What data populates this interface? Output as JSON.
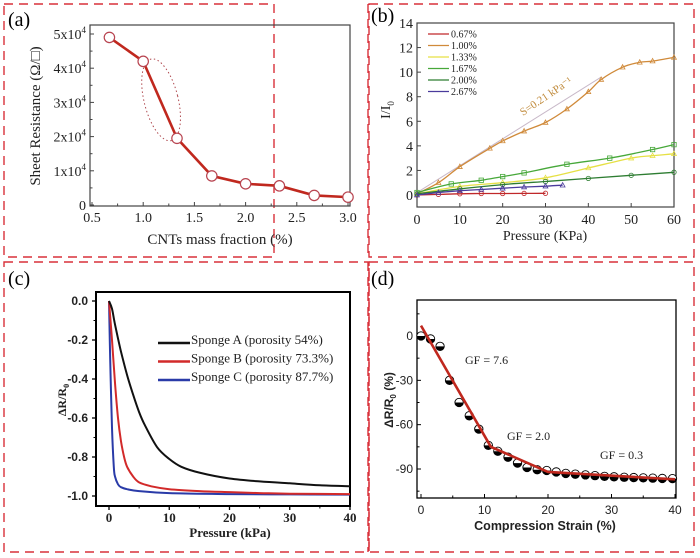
{
  "figure": {
    "border_color": "#d9303a",
    "panel_labels": [
      "(a)",
      "(b)",
      "(c)",
      "(d)"
    ]
  },
  "chart_data": [
    {
      "panel": "(a)",
      "type": "line",
      "title": "",
      "xlabel": "CNTs mass fraction (%)",
      "ylabel": "Sheet Resistance (Ω/□)",
      "xlim": [
        0.5,
        3.0
      ],
      "ylim": [
        0,
        50000
      ],
      "xticks": [
        "0.5",
        "1.0",
        "1.5",
        "2.0",
        "2.5",
        "3.0"
      ],
      "yticks": [
        "0",
        "1x10⁴",
        "2x10⁴",
        "3x10⁴",
        "4x10⁴",
        "5x10⁴"
      ],
      "series": [
        {
          "name": "Sheet resistance",
          "color": "#c0281e",
          "x": [
            0.67,
            1.0,
            1.33,
            1.67,
            2.0,
            2.33,
            2.67,
            3.0
          ],
          "y": [
            49000,
            42000,
            19500,
            8500,
            6200,
            5600,
            2800,
            2300
          ]
        }
      ],
      "annotations": [
        "dotted ellipse highlighting drop between 1.0% and 1.33%"
      ]
    },
    {
      "panel": "(b)",
      "type": "line",
      "title": "",
      "xlabel": "Pressure (KPa)",
      "ylabel": "I/I₀",
      "xlim": [
        0,
        60
      ],
      "ylim": [
        -1,
        14
      ],
      "xticks": [
        "0",
        "10",
        "20",
        "30",
        "40",
        "50",
        "60"
      ],
      "yticks": [
        "0",
        "2",
        "4",
        "6",
        "8",
        "10",
        "12",
        "14"
      ],
      "legend_position": "top-left",
      "annotation": "S=0.21 kPa⁻¹",
      "series": [
        {
          "name": "0.67%",
          "color": "#c0282a",
          "x": [
            0,
            5,
            10,
            15,
            20,
            25,
            30
          ],
          "y": [
            0,
            0.05,
            0.1,
            0.12,
            0.12,
            0.13,
            0.14
          ]
        },
        {
          "name": "1.00%",
          "color": "#d08a3a",
          "x": [
            0,
            5,
            10,
            17,
            20,
            25,
            30,
            35,
            40,
            43,
            48,
            52,
            55,
            60
          ],
          "y": [
            0.1,
            1.0,
            2.3,
            3.8,
            4.4,
            5.2,
            5.9,
            7.0,
            8.4,
            9.4,
            10.4,
            10.8,
            10.9,
            11.2
          ]
        },
        {
          "name": "1.33%",
          "color": "#e6e044",
          "x": [
            0,
            10,
            20,
            30,
            40,
            50,
            55,
            60
          ],
          "y": [
            0.1,
            0.7,
            1.0,
            1.4,
            2.2,
            3.0,
            3.2,
            3.35
          ]
        },
        {
          "name": "1.67%",
          "color": "#47a83a",
          "x": [
            0,
            8,
            15,
            20,
            25,
            35,
            45,
            55,
            60
          ],
          "y": [
            0.2,
            0.9,
            1.2,
            1.5,
            1.8,
            2.5,
            3.0,
            3.7,
            4.1
          ]
        },
        {
          "name": "2.00%",
          "color": "#2e7d32",
          "x": [
            0,
            10,
            20,
            30,
            40,
            50,
            60
          ],
          "y": [
            0.1,
            0.5,
            0.85,
            1.1,
            1.35,
            1.6,
            1.85
          ]
        },
        {
          "name": "2.67%",
          "color": "#4a3b9c",
          "x": [
            0,
            5,
            10,
            15,
            20,
            25,
            30,
            34
          ],
          "y": [
            0,
            0.2,
            0.35,
            0.45,
            0.55,
            0.65,
            0.72,
            0.8
          ]
        }
      ],
      "fit_line": {
        "color": "#c8b8c8",
        "x": [
          0,
          43
        ],
        "y": [
          0.2,
          9.6
        ]
      }
    },
    {
      "panel": "(c)",
      "type": "line",
      "title": "",
      "xlabel": "Pressure (kPa)",
      "ylabel": "ΔR/R₀",
      "xlim": [
        -1.5,
        40
      ],
      "ylim": [
        -1.05,
        0.05
      ],
      "xticks": [
        "0",
        "10",
        "20",
        "30",
        "40"
      ],
      "yticks": [
        "0.0",
        "-0.2",
        "-0.4",
        "-0.6",
        "-0.8",
        "-1.0"
      ],
      "legend_position": "top-right",
      "series": [
        {
          "name": "Sponge  A (porosity 54%)",
          "color": "#111111",
          "x": [
            0,
            0.5,
            1,
            2,
            3,
            4,
            5,
            6,
            8,
            10,
            12,
            15,
            20,
            25,
            30,
            35,
            40
          ],
          "y": [
            0,
            -0.04,
            -0.12,
            -0.26,
            -0.38,
            -0.48,
            -0.57,
            -0.64,
            -0.75,
            -0.81,
            -0.85,
            -0.88,
            -0.91,
            -0.925,
            -0.935,
            -0.945,
            -0.95
          ]
        },
        {
          "name": "Sponge  B (porosity 73.3%)",
          "color": "#d22a2a",
          "x": [
            0,
            0.5,
            1,
            1.5,
            2,
            2.5,
            3,
            4,
            5,
            7,
            10,
            15,
            20,
            25,
            30,
            40
          ],
          "y": [
            0,
            -0.2,
            -0.42,
            -0.6,
            -0.72,
            -0.8,
            -0.85,
            -0.9,
            -0.93,
            -0.95,
            -0.965,
            -0.975,
            -0.98,
            -0.985,
            -0.988,
            -0.99
          ]
        },
        {
          "name": "Sponge  C (porosity 87.7%)",
          "color": "#2a3ba8",
          "x": [
            0,
            0.2,
            0.5,
            0.8,
            1,
            1.5,
            2,
            3,
            5,
            10,
            20,
            30,
            40
          ],
          "y": [
            0,
            -0.3,
            -0.65,
            -0.85,
            -0.9,
            -0.94,
            -0.955,
            -0.965,
            -0.975,
            -0.985,
            -0.99,
            -0.992,
            -0.993
          ]
        }
      ]
    },
    {
      "panel": "(d)",
      "type": "scatter",
      "title": "",
      "xlabel": "Compression Strain (%)",
      "ylabel": "ΔR/R₀ (%)",
      "xlim": [
        0,
        40
      ],
      "ylim": [
        -110,
        25
      ],
      "xticks": [
        "0",
        "10",
        "20",
        "30",
        "40"
      ],
      "yticks": [
        "0",
        "-30",
        "-60",
        "-90"
      ],
      "annotations": [
        "GF = 7.6",
        "GF = 2.0",
        "GF = 0.3"
      ],
      "points": {
        "x": [
          0,
          1.5,
          3,
          4.5,
          6,
          7.6,
          9.1,
          10.6,
          12.1,
          13.7,
          15.2,
          16.7,
          18.3,
          19.8,
          21.3,
          22.8,
          24.3,
          25.9,
          27.4,
          28.9,
          30.4,
          32,
          33.5,
          35,
          36.5,
          38,
          39.6
        ],
        "y": [
          0,
          -2,
          -7,
          -30,
          -45,
          -54,
          -63,
          -74,
          -78,
          -82,
          -86,
          -89,
          -90.5,
          -91,
          -92,
          -93,
          -93.5,
          -94,
          -94.5,
          -95,
          -95.3,
          -95.6,
          -95.8,
          -96,
          -96.2,
          -96.4,
          -96.5
        ]
      },
      "fit_line": {
        "color": "#c0281e",
        "x": [
          0,
          11,
          20,
          40
        ],
        "y": [
          7,
          -75,
          -92,
          -97
        ]
      }
    }
  ]
}
